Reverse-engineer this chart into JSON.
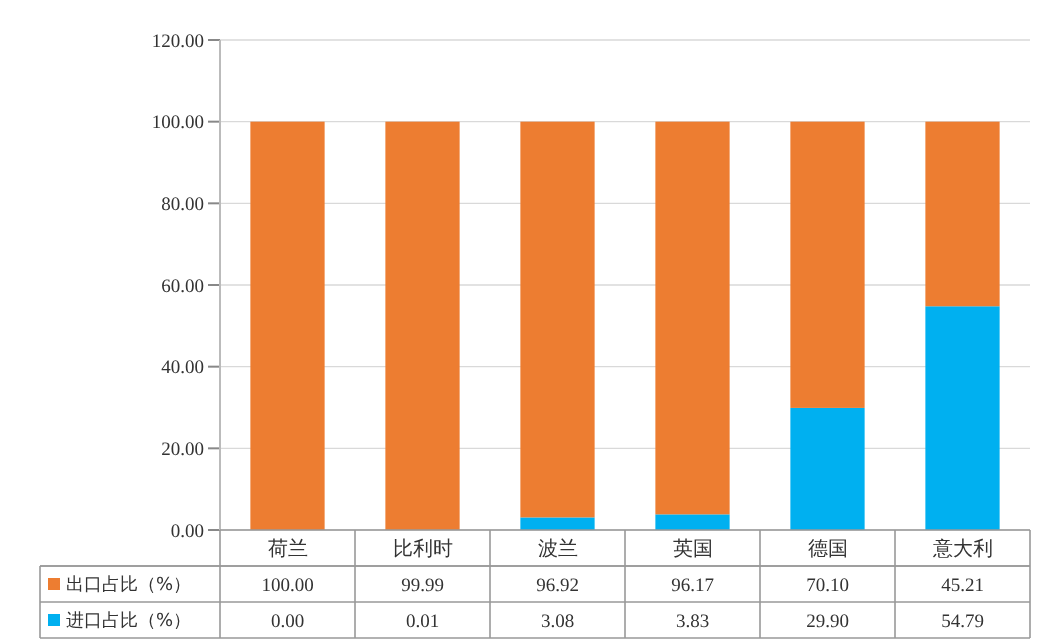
{
  "chart_data": {
    "type": "bar",
    "stacked": true,
    "categories": [
      "荷兰",
      "比利时",
      "波兰",
      "英国",
      "德国",
      "意大利"
    ],
    "series": [
      {
        "name": "进口占比（%）",
        "color": "#00b0f0",
        "values": [
          0,
          0.01,
          3.08,
          3.83,
          29.9,
          54.79
        ],
        "value_labels": [
          "0.00",
          "0.01",
          "3.08",
          "3.83",
          "29.90",
          "54.79"
        ]
      },
      {
        "name": "出口占比（%）",
        "color": "#ed7d31",
        "values": [
          100,
          99.99,
          96.92,
          96.17,
          70.1,
          45.21
        ],
        "value_labels": [
          "100.00",
          "99.99",
          "96.92",
          "96.17",
          "70.10",
          "45.21"
        ]
      }
    ],
    "ylim": [
      0,
      120
    ],
    "yticks": [
      {
        "value": 0,
        "label": "0.00"
      },
      {
        "value": 20,
        "label": "20.00"
      },
      {
        "value": 40,
        "label": "40.00"
      },
      {
        "value": 60,
        "label": "60.00"
      },
      {
        "value": 80,
        "label": "80.00"
      },
      {
        "value": 100,
        "label": "100.00"
      },
      {
        "value": 120,
        "label": "120.00"
      }
    ],
    "grid": "y",
    "legend": "bottom"
  }
}
